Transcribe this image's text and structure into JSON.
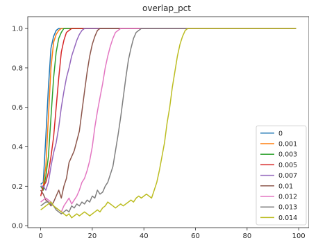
{
  "chart_data": {
    "type": "line",
    "title": "overlap_pct",
    "xlabel": "",
    "ylabel": "",
    "xlim": [
      -5,
      104
    ],
    "ylim": [
      -0.01,
      1.06
    ],
    "xticks": [
      0,
      20,
      40,
      60,
      80,
      100
    ],
    "xtick_labels": [
      "0",
      "20",
      "40",
      "60",
      "80",
      "100"
    ],
    "yticks": [
      0.0,
      0.2,
      0.4,
      0.6,
      0.8,
      1.0
    ],
    "ytick_labels": [
      "0.0",
      "0.2",
      "0.4",
      "0.6",
      "0.8",
      "1.0"
    ],
    "grid": false,
    "legend_position": "lower-right",
    "x": [
      0,
      1,
      2,
      3,
      4,
      5,
      6,
      7,
      8,
      9,
      10,
      11,
      12,
      13,
      14,
      15,
      16,
      17,
      18,
      19,
      20,
      21,
      22,
      23,
      24,
      25,
      26,
      27,
      28,
      29,
      30,
      31,
      32,
      33,
      34,
      35,
      36,
      37,
      38,
      39,
      40,
      41,
      42,
      43,
      44,
      45,
      46,
      47,
      48,
      49,
      50,
      51,
      52,
      53,
      54,
      55,
      56,
      57,
      58,
      59,
      60,
      61,
      62,
      63,
      64,
      65,
      66,
      67,
      68,
      69,
      70,
      71,
      72,
      73,
      74,
      75,
      76,
      77,
      78,
      79,
      80,
      81,
      82,
      83,
      84,
      85,
      86,
      87,
      88,
      89,
      90,
      91,
      92,
      93,
      94,
      95,
      96,
      97,
      98,
      99
    ],
    "series": [
      {
        "name": "0",
        "color": "#1f77b4",
        "values": [
          0.21,
          0.22,
          0.45,
          0.7,
          0.9,
          0.96,
          0.99,
          1.0,
          1.0,
          1.0,
          1.0,
          1.0,
          1.0,
          1.0,
          1.0,
          1.0,
          1.0,
          1.0,
          1.0,
          1.0,
          1.0,
          1.0,
          1.0,
          1.0,
          1.0,
          1.0,
          1.0,
          1.0,
          1.0,
          1.0,
          1.0,
          1.0,
          1.0,
          1.0,
          1.0,
          1.0,
          1.0,
          1.0,
          1.0,
          1.0,
          1.0,
          1.0,
          1.0,
          1.0,
          1.0,
          1.0,
          1.0,
          1.0,
          1.0,
          1.0,
          1.0,
          1.0,
          1.0,
          1.0,
          1.0,
          1.0,
          1.0,
          1.0,
          1.0,
          1.0,
          1.0,
          1.0,
          1.0,
          1.0,
          1.0,
          1.0,
          1.0,
          1.0,
          1.0,
          1.0,
          1.0,
          1.0,
          1.0,
          1.0,
          1.0,
          1.0,
          1.0,
          1.0,
          1.0,
          1.0,
          1.0,
          1.0,
          1.0,
          1.0,
          1.0,
          1.0,
          1.0,
          1.0,
          1.0,
          1.0,
          1.0,
          1.0,
          1.0,
          1.0,
          1.0,
          1.0,
          1.0,
          1.0,
          1.0,
          1.0
        ]
      },
      {
        "name": "0.001",
        "color": "#ff7f0e",
        "values": [
          0.2,
          0.2,
          0.3,
          0.55,
          0.8,
          0.93,
          0.97,
          0.99,
          1.0,
          1.0,
          1.0,
          1.0,
          1.0,
          1.0,
          1.0,
          1.0,
          1.0,
          1.0,
          1.0,
          1.0,
          1.0,
          1.0,
          1.0,
          1.0,
          1.0,
          1.0,
          1.0,
          1.0,
          1.0,
          1.0,
          1.0,
          1.0,
          1.0,
          1.0,
          1.0,
          1.0,
          1.0,
          1.0,
          1.0,
          1.0,
          1.0,
          1.0,
          1.0,
          1.0,
          1.0,
          1.0,
          1.0,
          1.0,
          1.0,
          1.0,
          1.0,
          1.0,
          1.0,
          1.0,
          1.0,
          1.0,
          1.0,
          1.0,
          1.0,
          1.0,
          1.0,
          1.0,
          1.0,
          1.0,
          1.0,
          1.0,
          1.0,
          1.0,
          1.0,
          1.0,
          1.0,
          1.0,
          1.0,
          1.0,
          1.0,
          1.0,
          1.0,
          1.0,
          1.0,
          1.0,
          1.0,
          1.0,
          1.0,
          1.0,
          1.0,
          1.0,
          1.0,
          1.0,
          1.0,
          1.0,
          1.0,
          1.0,
          1.0,
          1.0,
          1.0,
          1.0,
          1.0,
          1.0,
          1.0,
          1.0
        ]
      },
      {
        "name": "0.003",
        "color": "#2ca02c",
        "values": [
          0.2,
          0.18,
          0.25,
          0.35,
          0.55,
          0.75,
          0.88,
          0.95,
          0.98,
          1.0,
          1.0,
          1.0,
          1.0,
          1.0,
          1.0,
          1.0,
          1.0,
          1.0,
          1.0,
          1.0,
          1.0,
          1.0,
          1.0,
          1.0,
          1.0,
          1.0,
          1.0,
          1.0,
          1.0,
          1.0,
          1.0,
          1.0,
          1.0,
          1.0,
          1.0,
          1.0,
          1.0,
          1.0,
          1.0,
          1.0,
          1.0,
          1.0,
          1.0,
          1.0,
          1.0,
          1.0,
          1.0,
          1.0,
          1.0,
          1.0,
          1.0,
          1.0,
          1.0,
          1.0,
          1.0,
          1.0,
          1.0,
          1.0,
          1.0,
          1.0,
          1.0,
          1.0,
          1.0,
          1.0,
          1.0,
          1.0,
          1.0,
          1.0,
          1.0,
          1.0,
          1.0,
          1.0,
          1.0,
          1.0,
          1.0,
          1.0,
          1.0,
          1.0,
          1.0,
          1.0,
          1.0,
          1.0,
          1.0,
          1.0,
          1.0,
          1.0,
          1.0,
          1.0,
          1.0,
          1.0,
          1.0,
          1.0,
          1.0,
          1.0,
          1.0,
          1.0,
          1.0,
          1.0,
          1.0,
          1.0
        ]
      },
      {
        "name": "0.005",
        "color": "#d62728",
        "values": [
          0.15,
          0.2,
          0.22,
          0.27,
          0.35,
          0.45,
          0.6,
          0.75,
          0.88,
          0.94,
          0.98,
          0.99,
          1.0,
          1.0,
          1.0,
          1.0,
          1.0,
          1.0,
          1.0,
          1.0,
          1.0,
          1.0,
          1.0,
          1.0,
          1.0,
          1.0,
          1.0,
          1.0,
          1.0,
          1.0,
          1.0,
          1.0,
          1.0,
          1.0,
          1.0,
          1.0,
          1.0,
          1.0,
          1.0,
          1.0,
          1.0,
          1.0,
          1.0,
          1.0,
          1.0,
          1.0,
          1.0,
          1.0,
          1.0,
          1.0,
          1.0,
          1.0,
          1.0,
          1.0,
          1.0,
          1.0,
          1.0,
          1.0,
          1.0,
          1.0,
          1.0,
          1.0,
          1.0,
          1.0,
          1.0,
          1.0,
          1.0,
          1.0,
          1.0,
          1.0,
          1.0,
          1.0,
          1.0,
          1.0,
          1.0,
          1.0,
          1.0,
          1.0,
          1.0,
          1.0,
          1.0,
          1.0,
          1.0,
          1.0,
          1.0,
          1.0,
          1.0,
          1.0,
          1.0,
          1.0,
          1.0,
          1.0,
          1.0,
          1.0,
          1.0,
          1.0,
          1.0,
          1.0,
          1.0,
          1.0
        ]
      },
      {
        "name": "0.007",
        "color": "#9467bd",
        "values": [
          0.2,
          0.2,
          0.18,
          0.22,
          0.3,
          0.37,
          0.42,
          0.5,
          0.6,
          0.68,
          0.75,
          0.8,
          0.86,
          0.9,
          0.94,
          0.97,
          0.99,
          1.0,
          1.0,
          1.0,
          1.0,
          1.0,
          1.0,
          1.0,
          1.0,
          1.0,
          1.0,
          1.0,
          1.0,
          1.0,
          1.0,
          1.0,
          1.0,
          1.0,
          1.0,
          1.0,
          1.0,
          1.0,
          1.0,
          1.0,
          1.0,
          1.0,
          1.0,
          1.0,
          1.0,
          1.0,
          1.0,
          1.0,
          1.0,
          1.0,
          1.0,
          1.0,
          1.0,
          1.0,
          1.0,
          1.0,
          1.0,
          1.0,
          1.0,
          1.0,
          1.0,
          1.0,
          1.0,
          1.0,
          1.0,
          1.0,
          1.0,
          1.0,
          1.0,
          1.0,
          1.0,
          1.0,
          1.0,
          1.0,
          1.0,
          1.0,
          1.0,
          1.0,
          1.0,
          1.0,
          1.0,
          1.0,
          1.0,
          1.0,
          1.0,
          1.0,
          1.0,
          1.0,
          1.0,
          1.0,
          1.0,
          1.0,
          1.0,
          1.0,
          1.0,
          1.0,
          1.0,
          1.0,
          1.0,
          1.0
        ]
      },
      {
        "name": "0.01",
        "color": "#8c564b",
        "values": [
          0.18,
          0.16,
          0.13,
          0.12,
          0.1,
          0.12,
          0.15,
          0.18,
          0.14,
          0.2,
          0.24,
          0.32,
          0.35,
          0.38,
          0.43,
          0.48,
          0.58,
          0.68,
          0.78,
          0.86,
          0.92,
          0.96,
          0.99,
          1.0,
          1.0,
          1.0,
          1.0,
          1.0,
          1.0,
          1.0,
          1.0,
          1.0,
          1.0,
          1.0,
          1.0,
          1.0,
          1.0,
          1.0,
          1.0,
          1.0,
          1.0,
          1.0,
          1.0,
          1.0,
          1.0,
          1.0,
          1.0,
          1.0,
          1.0,
          1.0,
          1.0,
          1.0,
          1.0,
          1.0,
          1.0,
          1.0,
          1.0,
          1.0,
          1.0,
          1.0,
          1.0,
          1.0,
          1.0,
          1.0,
          1.0,
          1.0,
          1.0,
          1.0,
          1.0,
          1.0,
          1.0,
          1.0,
          1.0,
          1.0,
          1.0,
          1.0,
          1.0,
          1.0,
          1.0,
          1.0,
          1.0,
          1.0,
          1.0,
          1.0,
          1.0,
          1.0,
          1.0,
          1.0,
          1.0,
          1.0,
          1.0,
          1.0,
          1.0,
          1.0,
          1.0,
          1.0,
          1.0,
          1.0,
          1.0,
          1.0
        ]
      },
      {
        "name": "0.012",
        "color": "#e377c2",
        "values": [
          0.12,
          0.13,
          0.14,
          0.13,
          0.12,
          0.1,
          0.09,
          0.08,
          0.07,
          0.1,
          0.12,
          0.14,
          0.11,
          0.13,
          0.15,
          0.18,
          0.22,
          0.24,
          0.28,
          0.33,
          0.4,
          0.5,
          0.58,
          0.65,
          0.72,
          0.8,
          0.86,
          0.91,
          0.95,
          0.98,
          0.99,
          1.0,
          1.0,
          1.0,
          1.0,
          1.0,
          1.0,
          1.0,
          1.0,
          1.0,
          1.0,
          1.0,
          1.0,
          1.0,
          1.0,
          1.0,
          1.0,
          1.0,
          1.0,
          1.0,
          1.0,
          1.0,
          1.0,
          1.0,
          1.0,
          1.0,
          1.0,
          1.0,
          1.0,
          1.0,
          1.0,
          1.0,
          1.0,
          1.0,
          1.0,
          1.0,
          1.0,
          1.0,
          1.0,
          1.0,
          1.0,
          1.0,
          1.0,
          1.0,
          1.0,
          1.0,
          1.0,
          1.0,
          1.0,
          1.0,
          1.0,
          1.0,
          1.0,
          1.0,
          1.0,
          1.0,
          1.0,
          1.0,
          1.0,
          1.0,
          1.0,
          1.0,
          1.0,
          1.0,
          1.0,
          1.0,
          1.0,
          1.0,
          1.0,
          1.0
        ]
      },
      {
        "name": "0.013",
        "color": "#7f7f7f",
        "values": [
          0.1,
          0.11,
          0.12,
          0.12,
          0.11,
          0.1,
          0.08,
          0.07,
          0.06,
          0.07,
          0.08,
          0.07,
          0.1,
          0.09,
          0.11,
          0.1,
          0.12,
          0.11,
          0.13,
          0.12,
          0.15,
          0.14,
          0.18,
          0.16,
          0.17,
          0.2,
          0.22,
          0.26,
          0.3,
          0.38,
          0.46,
          0.55,
          0.65,
          0.75,
          0.84,
          0.9,
          0.95,
          0.98,
          0.99,
          1.0,
          1.0,
          1.0,
          1.0,
          1.0,
          1.0,
          1.0,
          1.0,
          1.0,
          1.0,
          1.0,
          1.0,
          1.0,
          1.0,
          1.0,
          1.0,
          1.0,
          1.0,
          1.0,
          1.0,
          1.0,
          1.0,
          1.0,
          1.0,
          1.0,
          1.0,
          1.0,
          1.0,
          1.0,
          1.0,
          1.0,
          1.0,
          1.0,
          1.0,
          1.0,
          1.0,
          1.0,
          1.0,
          1.0,
          1.0,
          1.0,
          1.0,
          1.0,
          1.0,
          1.0,
          1.0,
          1.0,
          1.0,
          1.0,
          1.0,
          1.0,
          1.0,
          1.0,
          1.0,
          1.0,
          1.0,
          1.0,
          1.0,
          1.0,
          1.0,
          1.0
        ]
      },
      {
        "name": "0.014",
        "color": "#bcbd22",
        "values": [
          0.08,
          0.09,
          0.1,
          0.11,
          0.12,
          0.1,
          0.09,
          0.08,
          0.07,
          0.06,
          0.05,
          0.06,
          0.04,
          0.05,
          0.06,
          0.05,
          0.06,
          0.07,
          0.06,
          0.05,
          0.06,
          0.07,
          0.08,
          0.07,
          0.09,
          0.1,
          0.12,
          0.11,
          0.1,
          0.09,
          0.1,
          0.11,
          0.1,
          0.11,
          0.12,
          0.13,
          0.12,
          0.14,
          0.15,
          0.14,
          0.15,
          0.16,
          0.15,
          0.14,
          0.18,
          0.22,
          0.28,
          0.35,
          0.42,
          0.52,
          0.6,
          0.7,
          0.78,
          0.86,
          0.92,
          0.96,
          0.99,
          1.0,
          1.0,
          1.0,
          1.0,
          1.0,
          1.0,
          1.0,
          1.0,
          1.0,
          1.0,
          1.0,
          1.0,
          1.0,
          1.0,
          1.0,
          1.0,
          1.0,
          1.0,
          1.0,
          1.0,
          1.0,
          1.0,
          1.0,
          1.0,
          1.0,
          1.0,
          1.0,
          1.0,
          1.0,
          1.0,
          1.0,
          1.0,
          1.0,
          1.0,
          1.0,
          1.0,
          1.0,
          1.0,
          1.0,
          1.0,
          1.0,
          1.0,
          1.0
        ]
      }
    ]
  }
}
